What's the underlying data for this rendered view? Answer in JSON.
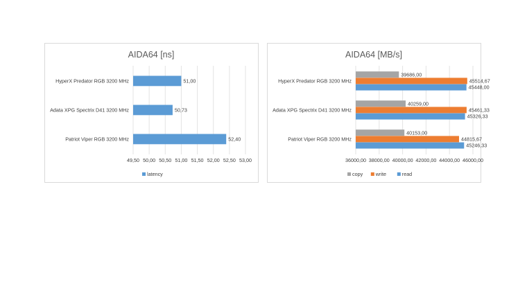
{
  "colors": {
    "read": "#5b9bd5",
    "write": "#ed7d31",
    "copy": "#a5a5a5",
    "latency": "#5b9bd5"
  },
  "chart_data": [
    {
      "type": "bar",
      "orientation": "horizontal",
      "title": "AIDA64 [ns]",
      "categories": [
        "HyperX Predator RGB 3200 MHz",
        "Adata XPG Spectrix D41 3200 MHz",
        "Patriot Viper RGB 3200 MHz"
      ],
      "series": [
        {
          "name": "latency",
          "values": [
            51.0,
            50.73,
            52.4
          ],
          "labels": [
            "51,00",
            "50,73",
            "52,40"
          ]
        }
      ],
      "xlim": [
        49.5,
        53.0
      ],
      "ticks": [
        49.5,
        50.0,
        50.5,
        51.0,
        51.5,
        52.0,
        52.5,
        53.0
      ],
      "tick_labels": [
        "49,50",
        "50,00",
        "50,50",
        "51,00",
        "51,50",
        "52,00",
        "52,50",
        "53,00"
      ],
      "grid": true,
      "legend": "bottom"
    },
    {
      "type": "bar",
      "orientation": "horizontal",
      "title": "AIDA64 [MB/s]",
      "categories": [
        "HyperX Predator RGB 3200 MHz",
        "Adata XPG Spectrix D41 3200 MHz",
        "Patriot Viper RGB 3200 MHz"
      ],
      "series": [
        {
          "name": "copy",
          "values": [
            39686.0,
            40259.0,
            40153.0
          ],
          "labels": [
            "39686,00",
            "40259,00",
            "40153,00"
          ]
        },
        {
          "name": "write",
          "values": [
            45514.67,
            45461.33,
            44815.67
          ],
          "labels": [
            "45514,67",
            "45461,33",
            "44815,67"
          ]
        },
        {
          "name": "read",
          "values": [
            45448.0,
            45326.33,
            45246.33
          ],
          "labels": [
            "45448,00",
            "45326,33",
            "45246,33"
          ]
        }
      ],
      "xlim": [
        36000,
        46000
      ],
      "ticks": [
        36000,
        38000,
        40000,
        42000,
        44000,
        46000
      ],
      "tick_labels": [
        "36000,00",
        "38000,00",
        "40000,00",
        "42000,00",
        "44000,00",
        "46000,00"
      ],
      "grid": true,
      "legend": "bottom"
    }
  ]
}
